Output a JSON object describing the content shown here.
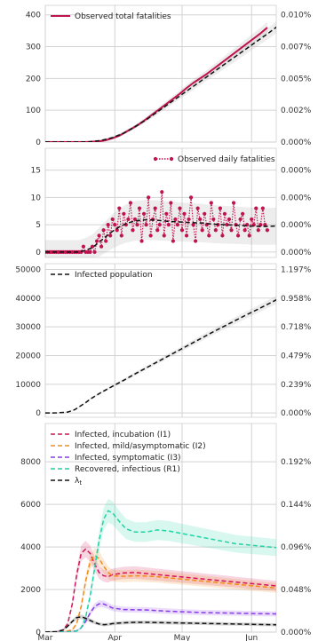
{
  "x_month_labels": [
    "Mar",
    "Apr",
    "May",
    "Jun"
  ],
  "chart_data": [
    {
      "type": "line",
      "panel": "cumulative fatalities",
      "x_unit": "day since 1 Mar",
      "ylim": [
        0,
        430
      ],
      "yticks": [
        "0",
        "100",
        "200",
        "300",
        "400"
      ],
      "y2ticks": [
        "0.000%",
        "0.002%",
        "0.005%",
        "0.007%",
        "0.010%"
      ],
      "legend": "top-left",
      "grid": true,
      "series": [
        {
          "name": "Observed total fatalities",
          "color": "#c0134f",
          "style": "solid",
          "x": [
            0,
            18,
            21,
            24,
            27,
            30,
            33,
            36,
            39,
            42,
            45,
            48,
            51,
            54,
            57,
            60,
            63,
            66,
            69,
            72,
            75,
            78,
            81,
            84,
            87,
            90,
            93,
            96,
            99
          ],
          "y": [
            0,
            0,
            1,
            2,
            6,
            12,
            20,
            32,
            44,
            57,
            72,
            88,
            104,
            120,
            136,
            152,
            170,
            186,
            200,
            214,
            230,
            246,
            262,
            278,
            294,
            310,
            326,
            342,
            360
          ]
        },
        {
          "name": "",
          "color": "#111111",
          "style": "dashed",
          "x": [
            0,
            15,
            20,
            25,
            30,
            35,
            40,
            45,
            50,
            55,
            60,
            65,
            70,
            75,
            80,
            85,
            90,
            95,
            100,
            105
          ],
          "y": [
            0,
            0,
            1,
            5,
            14,
            28,
            48,
            70,
            95,
            120,
            145,
            170,
            195,
            220,
            245,
            270,
            295,
            320,
            345,
            372
          ]
        }
      ]
    },
    {
      "type": "line",
      "panel": "daily fatalities",
      "x_unit": "day since 1 Mar",
      "ylim": [
        -1,
        19
      ],
      "yticks": [
        "0",
        "5",
        "10",
        "15"
      ],
      "y2ticks": [
        "0.000%",
        "0.000%",
        "0.000%",
        "0.000%"
      ],
      "legend": "top-right",
      "grid": true,
      "series": [
        {
          "name": "Observed daily fatalities",
          "color": "#c0134f",
          "style": "dotted-markers",
          "x": [
            0,
            1,
            2,
            3,
            4,
            5,
            6,
            7,
            8,
            9,
            10,
            11,
            12,
            13,
            14,
            15,
            16,
            17,
            18,
            19,
            20,
            21,
            22,
            23,
            24,
            25,
            26,
            27,
            28,
            29,
            30,
            31,
            32,
            33,
            34,
            35,
            36,
            37,
            38,
            39,
            40,
            41,
            42,
            43,
            44,
            45,
            46,
            47,
            48,
            49,
            50,
            51,
            52,
            53,
            54,
            55,
            56,
            57,
            58,
            59,
            60,
            61,
            62,
            63,
            64,
            65,
            66,
            67,
            68,
            69,
            70,
            71,
            72,
            73,
            74,
            75,
            76,
            77,
            78,
            79,
            80,
            81,
            82,
            83,
            84,
            85,
            86,
            87,
            88,
            89,
            90,
            91,
            92,
            93,
            94,
            95,
            96,
            97,
            98,
            99
          ],
          "y": [
            0,
            0,
            0,
            0,
            0,
            0,
            0,
            0,
            0,
            0,
            0,
            0,
            0,
            0,
            0,
            0,
            0,
            1,
            0,
            0,
            0,
            1,
            0,
            2,
            3,
            1,
            4,
            2,
            5,
            3,
            6,
            5,
            4,
            8,
            3,
            7,
            5,
            6,
            9,
            4,
            6,
            5,
            8,
            2,
            7,
            5,
            10,
            3,
            6,
            8,
            4,
            5,
            11,
            3,
            7,
            5,
            9,
            2,
            6,
            5,
            8,
            4,
            7,
            3,
            6,
            10,
            5,
            2,
            8,
            6,
            4,
            7,
            5,
            3,
            9,
            6,
            4,
            5,
            8,
            3,
            7,
            5,
            6,
            4,
            9,
            5,
            3,
            6,
            7,
            4,
            5,
            3,
            6,
            5,
            8,
            4,
            5,
            8,
            5,
            4
          ]
        },
        {
          "name": "",
          "color": "#111111",
          "style": "dashed",
          "x": [
            0,
            15,
            18,
            21,
            24,
            27,
            30,
            33,
            36,
            40,
            45,
            50,
            55,
            60,
            65,
            70,
            75,
            80,
            85,
            90,
            95,
            100,
            105
          ],
          "y": [
            0,
            0,
            0.3,
            0.8,
            1.8,
            2.8,
            3.8,
            4.6,
            5.2,
            5.7,
            5.9,
            5.8,
            5.6,
            5.5,
            5.4,
            5.3,
            5.1,
            5.0,
            4.9,
            4.8,
            4.7,
            4.7,
            4.8
          ]
        }
      ]
    },
    {
      "type": "line",
      "panel": "infected population",
      "x_unit": "day since 1 Mar",
      "ylim": [
        -1500,
        52000
      ],
      "yticks": [
        "0",
        "10000",
        "20000",
        "30000",
        "40000",
        "50000"
      ],
      "y2ticks": [
        "0.000%",
        "0.239%",
        "0.479%",
        "0.718%",
        "0.958%",
        "1.197%"
      ],
      "legend": "top-left",
      "grid": true,
      "series": [
        {
          "name": "Infected population",
          "color": "#111111",
          "style": "dashed",
          "x": [
            0,
            5,
            10,
            13,
            16,
            18,
            20,
            25,
            30,
            35,
            40,
            45,
            50,
            55,
            60,
            65,
            70,
            75,
            80,
            85,
            90,
            95,
            100,
            105
          ],
          "y": [
            0,
            40,
            300,
            1100,
            2600,
            3600,
            4800,
            7200,
            9300,
            11400,
            13600,
            15700,
            17800,
            19900,
            22000,
            24100,
            26200,
            28300,
            30300,
            32300,
            34300,
            36200,
            38200,
            40200
          ]
        }
      ]
    },
    {
      "type": "line",
      "panel": "compartments",
      "x_unit": "day since 1 Mar",
      "ylim": [
        0,
        9800
      ],
      "yticks": [
        "0",
        "2000",
        "4000",
        "6000",
        "8000"
      ],
      "y2ticks": [
        "0.000%",
        "0.048%",
        "0.096%",
        "0.144%",
        "0.192%"
      ],
      "legend": "top-left",
      "grid": true,
      "series": [
        {
          "name": "Infected, incubation (I1)",
          "color": "#d2145a",
          "style": "dashed",
          "x": [
            0,
            5,
            8,
            10,
            12,
            14,
            16,
            18,
            20,
            22,
            24,
            26,
            28,
            30,
            35,
            40,
            45,
            50,
            55,
            60,
            65,
            70,
            75,
            80,
            85,
            90,
            95,
            100,
            105
          ],
          "y": [
            0,
            10,
            100,
            400,
            1300,
            2700,
            3700,
            3900,
            3700,
            3200,
            2800,
            2650,
            2600,
            2700,
            2780,
            2800,
            2750,
            2700,
            2650,
            2600,
            2550,
            2500,
            2450,
            2400,
            2350,
            2300,
            2250,
            2200,
            2150
          ]
        },
        {
          "name": "Infected, mild/asymptomatic (I2)",
          "color": "#f08c1e",
          "style": "dashed",
          "x": [
            0,
            8,
            12,
            14,
            16,
            18,
            20,
            22,
            24,
            26,
            28,
            30,
            35,
            40,
            45,
            50,
            55,
            60,
            65,
            70,
            75,
            80,
            85,
            90,
            95,
            100,
            105
          ],
          "y": [
            0,
            10,
            100,
            400,
            1200,
            2400,
            3300,
            3600,
            3450,
            3100,
            2800,
            2650,
            2620,
            2650,
            2630,
            2600,
            2550,
            2500,
            2450,
            2400,
            2350,
            2300,
            2250,
            2200,
            2150,
            2100,
            2050
          ]
        },
        {
          "name": "Infected, symptomatic (I3)",
          "color": "#8a3ce8",
          "style": "dashed",
          "x": [
            0,
            10,
            14,
            16,
            18,
            20,
            22,
            24,
            26,
            28,
            30,
            35,
            40,
            45,
            50,
            55,
            60,
            65,
            70,
            75,
            80,
            85,
            90,
            95,
            100,
            105
          ],
          "y": [
            0,
            10,
            60,
            200,
            500,
            900,
            1200,
            1330,
            1320,
            1230,
            1130,
            1060,
            1050,
            1040,
            1010,
            980,
            960,
            940,
            920,
            910,
            900,
            890,
            880,
            870,
            860,
            850
          ]
        },
        {
          "name": "Recovered, infectious (R1)",
          "color": "#1fd4a4",
          "style": "dashed",
          "x": [
            0,
            10,
            14,
            16,
            18,
            20,
            22,
            24,
            26,
            28,
            30,
            33,
            36,
            40,
            45,
            50,
            55,
            60,
            65,
            70,
            75,
            80,
            85,
            90,
            95,
            100,
            105
          ],
          "y": [
            0,
            5,
            50,
            200,
            700,
            1700,
            3000,
            4300,
            5300,
            5700,
            5600,
            5200,
            4850,
            4700,
            4700,
            4800,
            4750,
            4650,
            4550,
            4450,
            4350,
            4250,
            4150,
            4100,
            4050,
            4000,
            3950
          ]
        },
        {
          "name": "λ_t",
          "color": "#111111",
          "style": "dashed",
          "x": [
            0,
            5,
            8,
            10,
            12,
            14,
            16,
            18,
            20,
            22,
            24,
            26,
            28,
            30,
            35,
            40,
            45,
            50,
            55,
            60,
            65,
            70,
            75,
            80,
            85,
            90,
            95,
            100,
            105
          ],
          "y": [
            0,
            20,
            100,
            280,
            500,
            680,
            720,
            650,
            550,
            450,
            380,
            350,
            360,
            400,
            440,
            460,
            460,
            450,
            440,
            430,
            420,
            410,
            400,
            390,
            380,
            370,
            360,
            350,
            340
          ]
        }
      ]
    }
  ]
}
